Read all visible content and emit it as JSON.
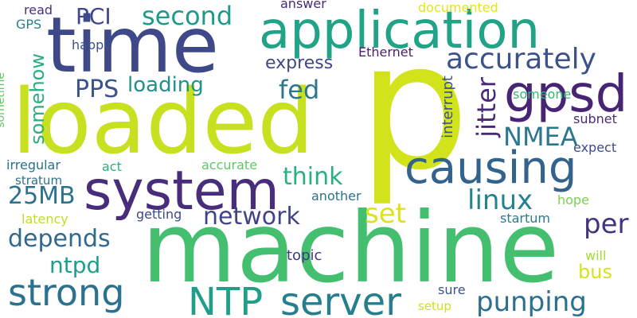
{
  "words": [
    {
      "text": "p",
      "color": "#d2e21b"
    },
    {
      "text": "loaded",
      "color": "#c7e020"
    },
    {
      "text": "machine",
      "color": "#44bf70"
    },
    {
      "text": "time",
      "color": "#3e4989"
    },
    {
      "text": "application",
      "color": "#20a386"
    },
    {
      "text": "system",
      "color": "#472d7b"
    },
    {
      "text": "causing",
      "color": "#33638d"
    },
    {
      "text": "gpsd",
      "color": "#482475"
    },
    {
      "text": "server",
      "color": "#277f8e"
    },
    {
      "text": "NTP",
      "color": "#1f9e89"
    },
    {
      "text": "strong",
      "color": "#2c728e"
    },
    {
      "text": "accurately",
      "color": "#3b528b"
    },
    {
      "text": "second",
      "color": "#1f9a8a"
    },
    {
      "text": "network",
      "color": "#414487"
    },
    {
      "text": "punping",
      "color": "#2d708e"
    },
    {
      "text": "depends",
      "color": "#31688e"
    },
    {
      "text": "linux",
      "color": "#26828e"
    },
    {
      "text": "set",
      "color": "#dde318"
    },
    {
      "text": "NMEA",
      "color": "#2a788e"
    },
    {
      "text": "jitter",
      "color": "#482878"
    },
    {
      "text": "fed",
      "color": "#2a788e"
    },
    {
      "text": "PPS",
      "color": "#3b528b"
    },
    {
      "text": "think",
      "color": "#2ab07f"
    },
    {
      "text": "ntpd",
      "color": "#1f9e89"
    },
    {
      "text": "per",
      "color": "#46327e"
    },
    {
      "text": "25MB",
      "color": "#2c728e"
    },
    {
      "text": "loading",
      "color": "#21918c"
    },
    {
      "text": "PCI",
      "color": "#3f4889"
    },
    {
      "text": "somehow",
      "color": "#29af7f"
    },
    {
      "text": "express",
      "color": "#404688"
    },
    {
      "text": "bus",
      "color": "#d8e219"
    },
    {
      "text": "topic",
      "color": "#453781"
    },
    {
      "text": "interrupt",
      "color": "#3b528b"
    },
    {
      "text": "someone",
      "color": "#35b779"
    },
    {
      "text": "subnet",
      "color": "#472c7a"
    },
    {
      "text": "expect",
      "color": "#3e4a89"
    },
    {
      "text": "Ethernet",
      "color": "#481f70"
    },
    {
      "text": "happy",
      "color": "#3b528b"
    },
    {
      "text": "answer",
      "color": "#482878"
    },
    {
      "text": "documented",
      "color": "#e5e419"
    },
    {
      "text": "read",
      "color": "#46327e"
    },
    {
      "text": "GPS",
      "color": "#26828e"
    },
    {
      "text": "sometime",
      "color": "#5ec962"
    },
    {
      "text": "irregular",
      "color": "#2d708e"
    },
    {
      "text": "stratum",
      "color": "#2d708e"
    },
    {
      "text": "act",
      "color": "#2ab07f"
    },
    {
      "text": "accurate",
      "color": "#5ec962"
    },
    {
      "text": "another",
      "color": "#2c728e"
    },
    {
      "text": "hope",
      "color": "#7ad151"
    },
    {
      "text": "latency",
      "color": "#bddf26"
    },
    {
      "text": "getting",
      "color": "#3e4989"
    },
    {
      "text": "startum",
      "color": "#287c8e"
    },
    {
      "text": "will",
      "color": "#a5db36"
    },
    {
      "text": "sure",
      "color": "#3b528b"
    },
    {
      "text": "setup",
      "color": "#d0e11c"
    }
  ]
}
